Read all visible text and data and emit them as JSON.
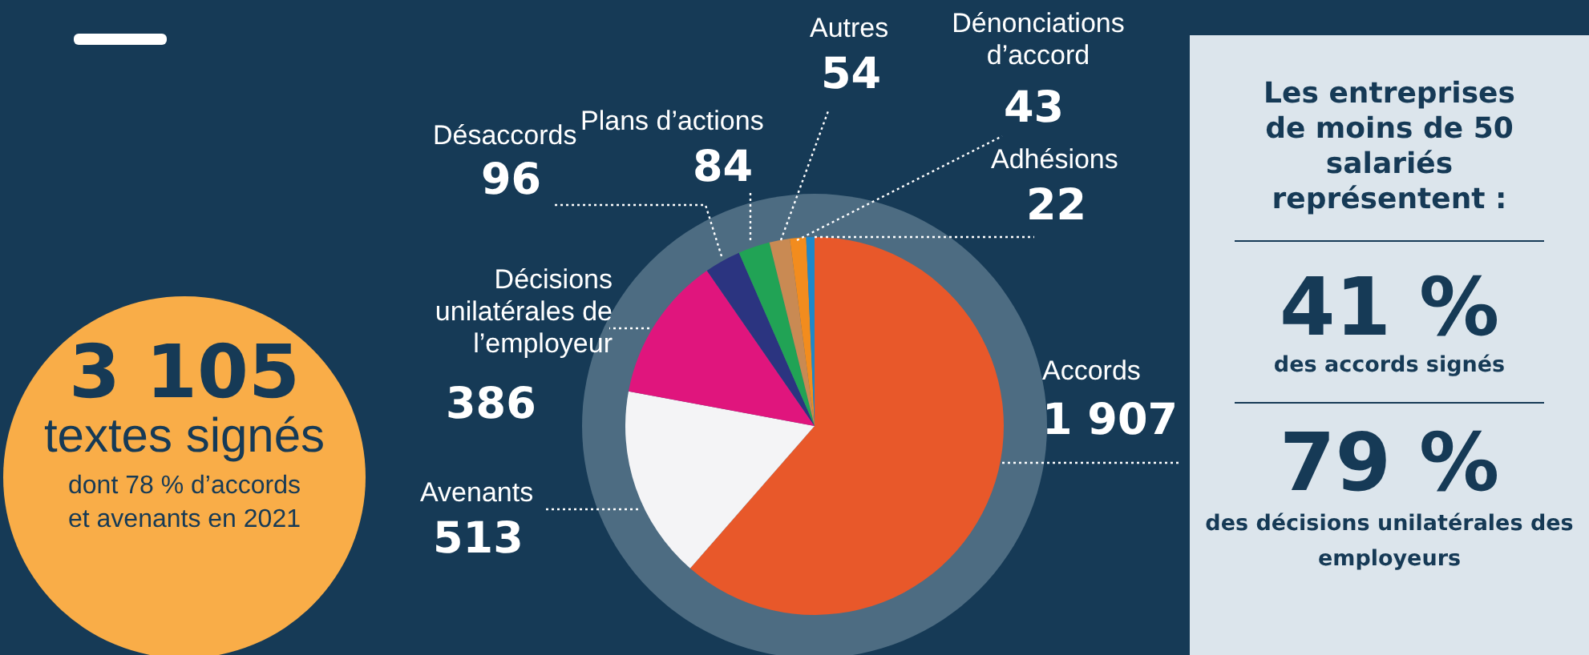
{
  "chart_data": {
    "type": "pie",
    "categories": [
      "Accords",
      "Avenants",
      "Décisions unilatérales de l’employeur",
      "Désaccords",
      "Plans d’actions",
      "Autres",
      "Dénonciations d’accord",
      "Adhésions"
    ],
    "values": [
      1907,
      513,
      386,
      96,
      84,
      54,
      43,
      22
    ],
    "value_labels": [
      "1 907",
      "513",
      "386",
      "96",
      "84",
      "54",
      "43",
      "22"
    ],
    "colors": [
      "#e8582a",
      "#f4f4f6",
      "#e0157d",
      "#2b3480",
      "#21a355",
      "#c98a53",
      "#f28c1e",
      "#1f88c9"
    ],
    "annotations": [
      "3 105",
      "textes signés",
      "dont 78 % d’accords et avenants en 2021",
      "Les entreprises de moins de 50 salariés représentent :",
      "41 %",
      "des accords signés",
      "79 %",
      "des décisions unilatérales des employeurs"
    ]
  }
}
